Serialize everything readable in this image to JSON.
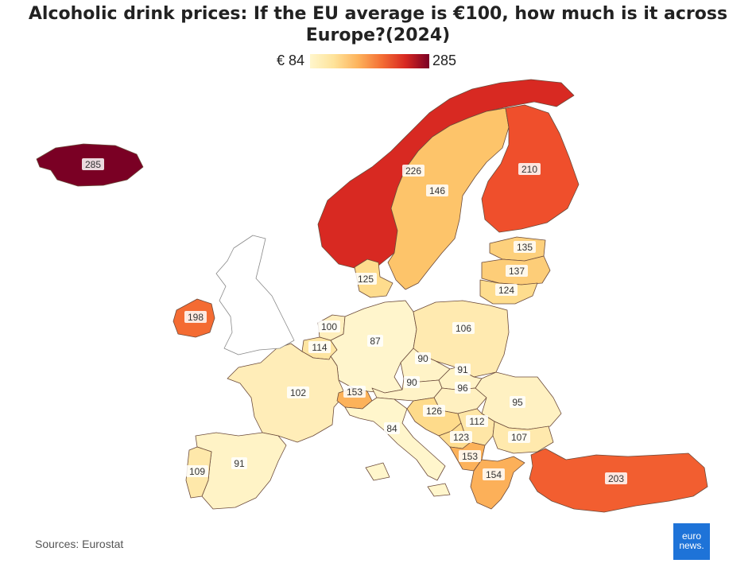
{
  "title": "Alcoholic drink prices: If the EU average is €100, how much is it across Europe?(2024)",
  "legend": {
    "min_label": "€ 84",
    "max_label": "285",
    "colors": [
      "#fff6cc",
      "#fee39a",
      "#fdb35c",
      "#f46f34",
      "#d82922",
      "#7a0024"
    ]
  },
  "source": "Sources: Eurostat",
  "logo": {
    "line1": "euro",
    "line2": "news."
  },
  "regions": [
    {
      "id": "iceland",
      "value": 285,
      "label": "285",
      "color": "#7a0024"
    },
    {
      "id": "norway",
      "value": 226,
      "label": "226",
      "color": "#d82922"
    },
    {
      "id": "sweden",
      "value": 146,
      "label": "146",
      "color": "#fdc46a"
    },
    {
      "id": "finland",
      "value": 210,
      "label": "210",
      "color": "#ef4f2c"
    },
    {
      "id": "estonia",
      "value": 135,
      "label": "135",
      "color": "#fdd07c"
    },
    {
      "id": "latvia",
      "value": 137,
      "label": "137",
      "color": "#fdcd78"
    },
    {
      "id": "lithuania",
      "value": 124,
      "label": "124",
      "color": "#fedd8e"
    },
    {
      "id": "denmark",
      "value": 125,
      "label": "125",
      "color": "#fedc8d"
    },
    {
      "id": "ireland",
      "value": 198,
      "label": "198",
      "color": "#f46b32"
    },
    {
      "id": "netherlands",
      "value": 100,
      "label": "100",
      "color": "#ffefbd"
    },
    {
      "id": "belgium",
      "value": 114,
      "label": "114",
      "color": "#fee5a2"
    },
    {
      "id": "germany",
      "value": 87,
      "label": "87",
      "color": "#fff5cc"
    },
    {
      "id": "poland",
      "value": 106,
      "label": "106",
      "color": "#ffeab0"
    },
    {
      "id": "czechia",
      "value": 90,
      "label": "90",
      "color": "#fff3c7"
    },
    {
      "id": "slovakia",
      "value": 91,
      "label": "91",
      "color": "#fff3c6"
    },
    {
      "id": "austria",
      "value": 90,
      "label": "90",
      "color": "#fff3c7"
    },
    {
      "id": "hungary",
      "value": 96,
      "label": "96",
      "color": "#fff0c0"
    },
    {
      "id": "romania",
      "value": 95,
      "label": "95",
      "color": "#fff1c2"
    },
    {
      "id": "france",
      "value": 102,
      "label": "102",
      "color": "#ffedb8"
    },
    {
      "id": "switzerland",
      "value": 153,
      "label": "153",
      "color": "#fcb25a"
    },
    {
      "id": "italy",
      "value": 84,
      "label": "84",
      "color": "#fff6cc"
    },
    {
      "id": "slovenia_croatia",
      "value": 126,
      "label": "126",
      "color": "#fedb8b"
    },
    {
      "id": "serbia",
      "value": 112,
      "label": "112",
      "color": "#fee6a6"
    },
    {
      "id": "bosnia",
      "value": 123,
      "label": "123",
      "color": "#fedd90"
    },
    {
      "id": "bulgaria",
      "value": 107,
      "label": "107",
      "color": "#ffe9ad"
    },
    {
      "id": "montenegro_albania",
      "value": 153,
      "label": "153",
      "color": "#fcb25a"
    },
    {
      "id": "greece",
      "value": 154,
      "label": "154",
      "color": "#fcb059"
    },
    {
      "id": "turkey",
      "value": 203,
      "label": "203",
      "color": "#f25e30"
    },
    {
      "id": "spain",
      "value": 91,
      "label": "91",
      "color": "#fff3c6"
    },
    {
      "id": "portugal",
      "value": 109,
      "label": "109",
      "color": "#fee8aa"
    },
    {
      "id": "uk",
      "value": null,
      "label": "",
      "color": "#ffffff"
    }
  ]
}
